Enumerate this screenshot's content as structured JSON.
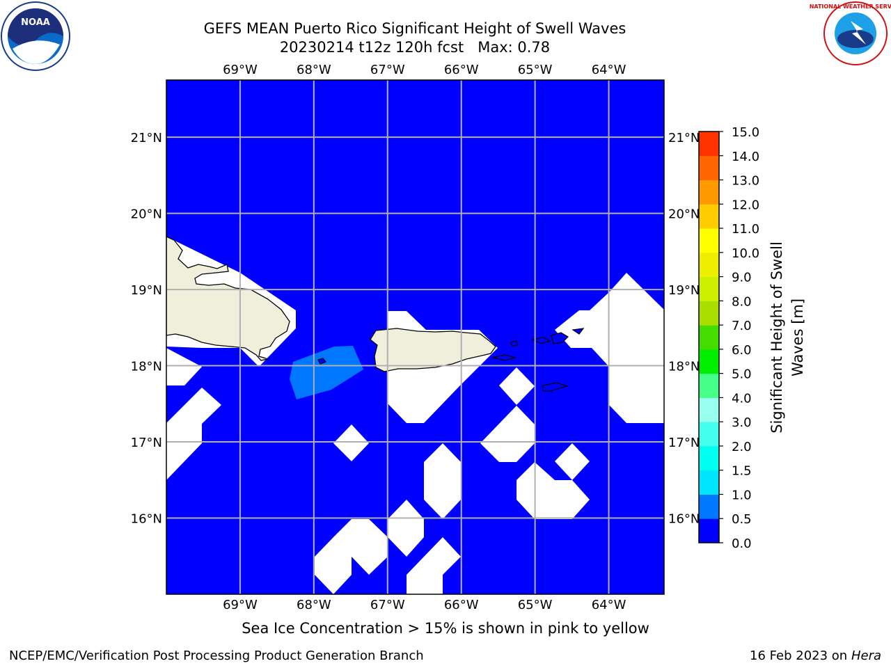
{
  "header": {
    "title_line1": "GEFS MEAN Puerto Rico Significant Height of Swell Waves",
    "title_line2": "20230214 t12z 120h fcst   Max: 0.78"
  },
  "logos": {
    "left": {
      "icon": "noaa-logo",
      "text": "NOAA"
    },
    "right": {
      "icon": "nws-logo",
      "text": "NATIONAL WEATHER SERVICE"
    }
  },
  "colors": {
    "ocean": "#0000ff",
    "swell_05": "#0077ff",
    "land": "#efefdc",
    "missing": "#ffffff",
    "grid": "#b0b0b0"
  },
  "chart_data": {
    "type": "heatmap",
    "map": "Puerto Rico",
    "lon_ticks": [
      "69°W",
      "68°W",
      "67°W",
      "66°W",
      "65°W",
      "64°W"
    ],
    "lat_ticks": [
      "21°N",
      "20°N",
      "19°N",
      "18°N",
      "17°N",
      "16°N"
    ],
    "lon_values": [
      -69,
      -68,
      -67,
      -66,
      -65,
      -64
    ],
    "lat_values": [
      21,
      20,
      19,
      18,
      17,
      16
    ],
    "lon_range": [
      -70.0,
      -63.25
    ],
    "lat_range": [
      15.0,
      21.75
    ],
    "grid": true,
    "max_value": 0.78,
    "colorbar": {
      "label": "Significant Height of Swell Waves [m]",
      "label_line1": "Significant Height of Swell",
      "label_line2": "Waves [m]",
      "ticks": [
        "0.0",
        "0.5",
        "1.0",
        "1.5",
        "2.0",
        "3.0",
        "4.0",
        "5.0",
        "6.0",
        "7.0",
        "8.0",
        "9.0",
        "10.0",
        "11.0",
        "12.0",
        "13.0",
        "14.0",
        "15.0"
      ],
      "colors": [
        "#0000ff",
        "#0077ff",
        "#00e5ff",
        "#00ffee",
        "#44ffee",
        "#99ffee",
        "#44ff88",
        "#00ee00",
        "#44dd00",
        "#aadd00",
        "#ccee00",
        "#eeee00",
        "#ffff00",
        "#ffcc00",
        "#ff9900",
        "#ff6600",
        "#ff3300",
        "#ff0000"
      ]
    }
  },
  "footer": {
    "caption": "Sea Ice Concentration > 15% is shown in pink to yellow",
    "credit": "NCEP/EMC/Verification Post Processing Product Generation Branch",
    "date": "16 Feb 2023 on",
    "machine": "Hera"
  }
}
